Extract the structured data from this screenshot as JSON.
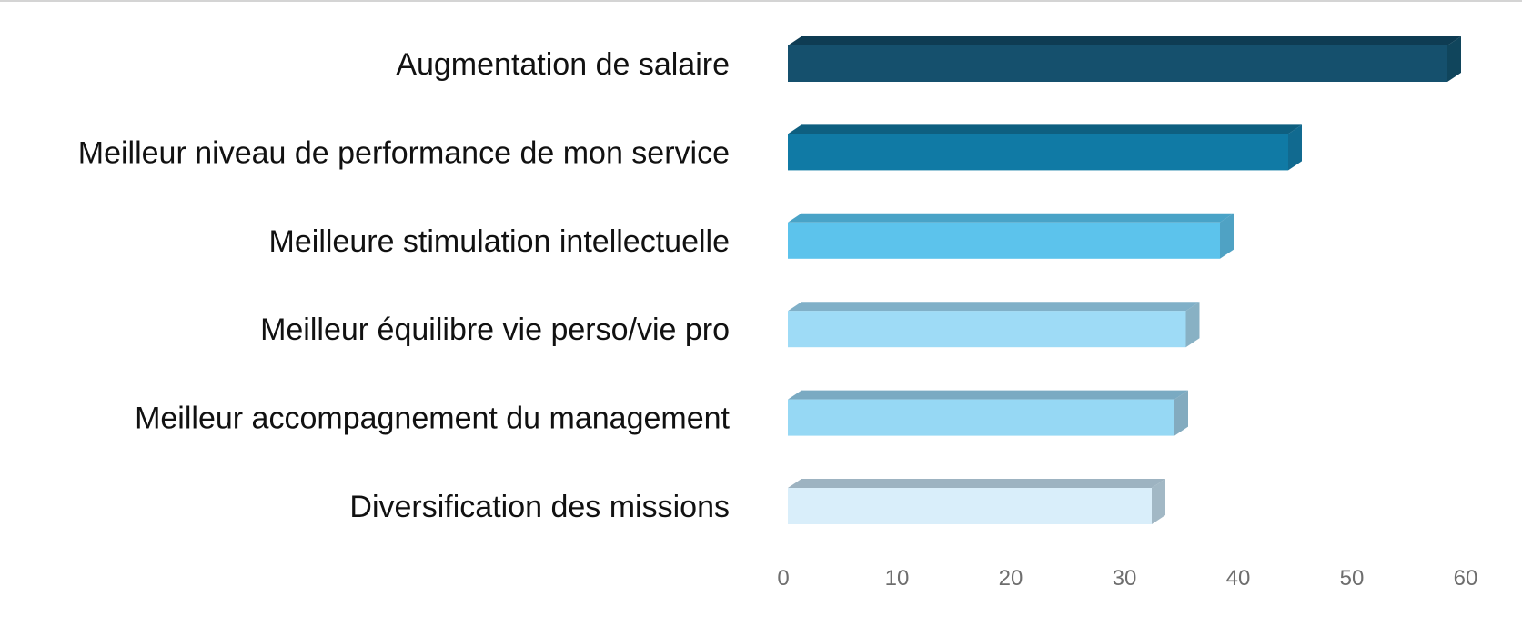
{
  "chart_data": {
    "type": "bar",
    "orientation": "horizontal",
    "style": "3d-beveled",
    "title": "",
    "xlabel": "",
    "ylabel": "",
    "grid": false,
    "legend": false,
    "xlim": [
      0,
      60
    ],
    "x_ticks": [
      "0",
      "10",
      "20",
      "30",
      "40",
      "50",
      "60"
    ],
    "x_tick_values": [
      0,
      10,
      20,
      30,
      40,
      50,
      60
    ],
    "categories": [
      "Augmentation de salaire",
      "Meilleur niveau de performance de mon service",
      "Meilleure stimulation intellectuelle",
      "Meilleur équilibre vie perso/vie pro",
      "Meilleur accompagnement du management",
      "Diversification des missions"
    ],
    "values": [
      58,
      44,
      38,
      35,
      34,
      32
    ],
    "bar_colors": [
      {
        "front": "#15506d",
        "top": "#0e3c53",
        "side": "#10455c"
      },
      {
        "front": "#107aa5",
        "top": "#0e5f80",
        "side": "#116a90"
      },
      {
        "front": "#5cc3ec",
        "top": "#49a3c7",
        "side": "#4fa2c4"
      },
      {
        "front": "#9edbf6",
        "top": "#80b0c8",
        "side": "#88b1c4"
      },
      {
        "front": "#96d8f4",
        "top": "#7aaac2",
        "side": "#83abbf"
      },
      {
        "front": "#d9eefa",
        "top": "#9db3c1",
        "side": "#a2b8c5"
      }
    ],
    "category_label_color": "#111111",
    "tick_label_color": "#6e6e6e",
    "background_color": "#ffffff",
    "top_border_color": "#d4d4d4"
  }
}
